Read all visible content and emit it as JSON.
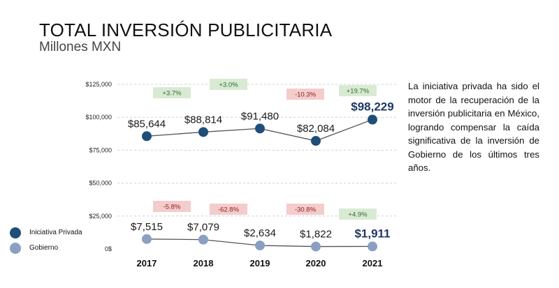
{
  "header": {
    "title": "TOTAL INVERSIÓN PUBLICITARIA",
    "subtitle": "Millones MXN"
  },
  "commentary": "La iniciativa privada ha sido el motor de la recuperación de la inversión publicitaria en México, logrando compensar la caída significativa de la inversión de Gobierno de los últimos tres años.",
  "colors": {
    "private": "#1f4e79",
    "government": "#8aa0c2",
    "positive_bg": "#d9ead3",
    "positive_text": "#2e6b2e",
    "negative_bg": "#f4cccc",
    "negative_text": "#8b1a1a",
    "grid": "#cfcfcf",
    "line": "#555555",
    "highlight_label": "#1f3864"
  },
  "chart_data": {
    "type": "line",
    "categories": [
      "2017",
      "2018",
      "2019",
      "2020",
      "2021"
    ],
    "y_ticks": [
      "$125,000",
      "$100,000",
      "$75,000",
      "$50,000",
      "$25,000",
      "0$"
    ],
    "ylim": [
      0,
      125000
    ],
    "grid": true,
    "legend_position": "bottom-left",
    "series": [
      {
        "name": "Iniciativa Privada",
        "values": [
          85644,
          88814,
          91480,
          82084,
          98229
        ],
        "labels": [
          "$85,644",
          "$88,814",
          "$91,480",
          "$82,084",
          "$98,229"
        ],
        "changes": [
          "+3.7%",
          "+3.0%",
          "-10.3%",
          "+19.7%"
        ]
      },
      {
        "name": "Gobierno",
        "values": [
          7515,
          7079,
          2634,
          1822,
          1911
        ],
        "labels": [
          "$7,515",
          "$7,079",
          "$2,634",
          "$1,822",
          "$1,911"
        ],
        "changes": [
          "-5.8%",
          "-62.8%",
          "-30.8%",
          "+4.9%"
        ]
      }
    ]
  }
}
